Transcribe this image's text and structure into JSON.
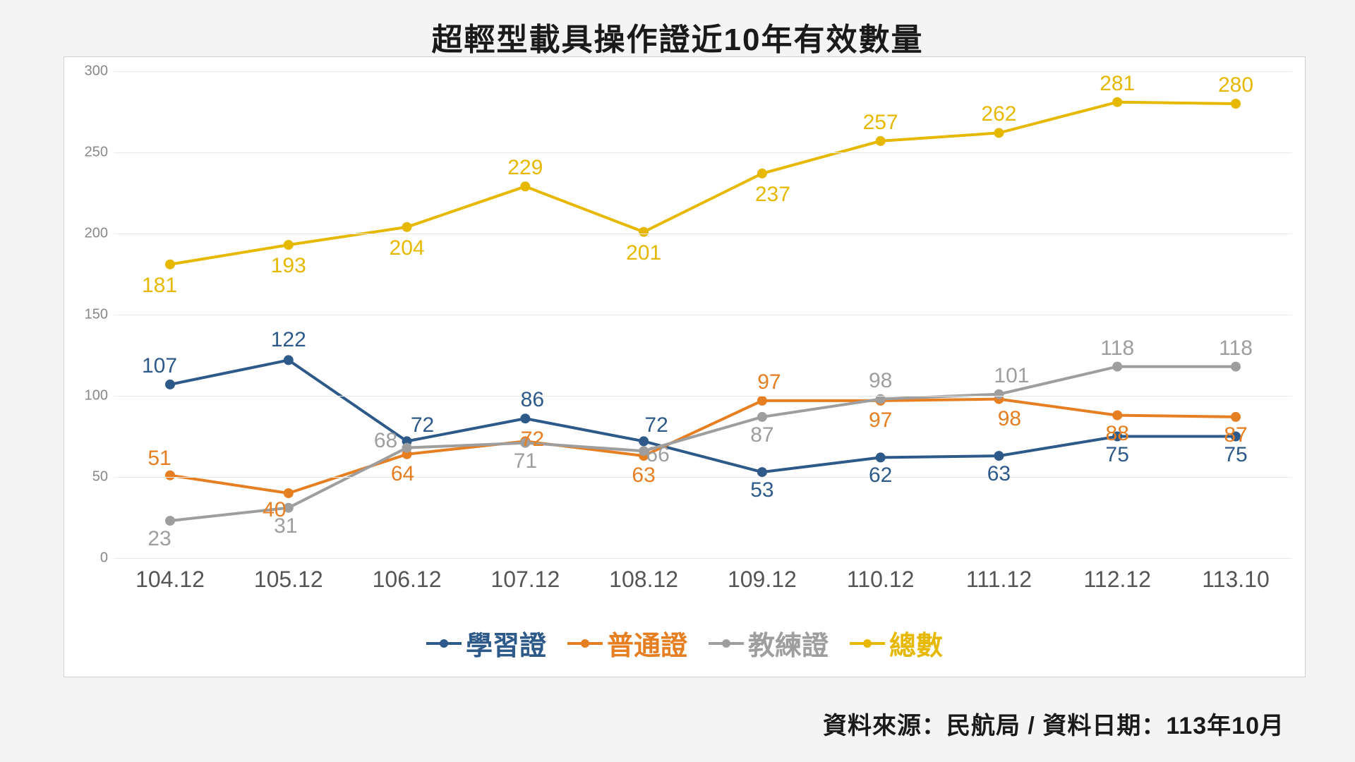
{
  "title": "超輕型載具操作證近10年有效數量",
  "footer": "資料來源：民航局  / 資料日期：113年10月",
  "chart": {
    "type": "line",
    "background_color": "#ffffff",
    "grid_color": "#e8e8e8",
    "ylim": [
      0,
      300
    ],
    "ytick_step": 50,
    "categories": [
      "104.12",
      "105.12",
      "106.12",
      "107.12",
      "108.12",
      "109.12",
      "110.12",
      "111.12",
      "112.12",
      "113.10"
    ],
    "axis_fontsize_x": 32,
    "axis_fontsize_y": 20,
    "axis_color": "#888",
    "label_fontsize": 30,
    "line_width": 4,
    "marker_size": 7,
    "series": [
      {
        "name": "學習證",
        "color": "#2e5a8a",
        "values": [
          107,
          122,
          72,
          86,
          72,
          53,
          62,
          63,
          75,
          75
        ],
        "label_offsets": [
          [
            -15,
            -26
          ],
          [
            0,
            -28
          ],
          [
            22,
            -22
          ],
          [
            10,
            -26
          ],
          [
            18,
            -22
          ],
          [
            0,
            26
          ],
          [
            0,
            26
          ],
          [
            0,
            26
          ],
          [
            0,
            26
          ],
          [
            0,
            26
          ]
        ]
      },
      {
        "name": "普通證",
        "color": "#e67e22",
        "values": [
          51,
          40,
          64,
          72,
          63,
          97,
          97,
          98,
          88,
          87
        ],
        "label_offsets": [
          [
            -15,
            -24
          ],
          [
            -20,
            24
          ],
          [
            -6,
            28
          ],
          [
            10,
            -2
          ],
          [
            0,
            28
          ],
          [
            10,
            -26
          ],
          [
            0,
            28
          ],
          [
            15,
            28
          ],
          [
            0,
            26
          ],
          [
            0,
            26
          ]
        ]
      },
      {
        "name": "教練證",
        "color": "#9e9e9e",
        "values": [
          23,
          31,
          68,
          71,
          66,
          87,
          98,
          101,
          118,
          118
        ],
        "label_offsets": [
          [
            -15,
            26
          ],
          [
            -4,
            26
          ],
          [
            -30,
            -10
          ],
          [
            0,
            26
          ],
          [
            20,
            6
          ],
          [
            0,
            26
          ],
          [
            0,
            -26
          ],
          [
            18,
            -26
          ],
          [
            0,
            -26
          ],
          [
            0,
            -26
          ]
        ]
      },
      {
        "name": "總數",
        "color": "#e6b800",
        "values": [
          181,
          193,
          204,
          229,
          201,
          237,
          257,
          262,
          281,
          280
        ],
        "label_offsets": [
          [
            -15,
            30
          ],
          [
            0,
            30
          ],
          [
            0,
            30
          ],
          [
            0,
            -26
          ],
          [
            0,
            30
          ],
          [
            15,
            30
          ],
          [
            0,
            -26
          ],
          [
            0,
            -26
          ],
          [
            0,
            -26
          ],
          [
            0,
            -26
          ]
        ]
      }
    ],
    "legend": [
      "學習證",
      "普通證",
      "教練證",
      "總數"
    ]
  }
}
